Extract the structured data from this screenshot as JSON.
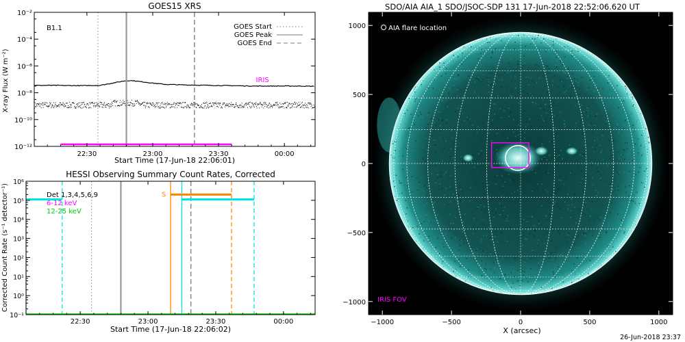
{
  "footer_timestamp": "26-Jun-2018 23:37",
  "chart_data": [
    {
      "id": "goes",
      "type": "line",
      "title": "GOES15 XRS",
      "xlabel": "Start Time (17-Jun-18 22:06:01)",
      "ylabel": "X-ray Flux (W m⁻²)",
      "x_unit": "minutes since 22:06:01",
      "xlim": [
        0,
        128
      ],
      "ylim_log10": [
        -12,
        -2
      ],
      "x_ticks": [
        {
          "m": 24,
          "label": "22:30"
        },
        {
          "m": 54,
          "label": "23:00"
        },
        {
          "m": 84,
          "label": "23:30"
        },
        {
          "m": 114,
          "label": "00:00"
        }
      ],
      "y_ticks": [
        {
          "e": -2,
          "label": "10⁻²"
        },
        {
          "e": -4,
          "label": "10⁻⁴"
        },
        {
          "e": -6,
          "label": "10⁻⁶"
        },
        {
          "e": -8,
          "label": "10⁻⁸"
        },
        {
          "e": -10,
          "label": "10⁻¹⁰"
        },
        {
          "e": -12,
          "label": "10⁻¹²"
        }
      ],
      "class_label": "B1.1",
      "legend": [
        {
          "name": "GOES Start",
          "dash": "dot"
        },
        {
          "name": "GOES Peak",
          "dash": "solid"
        },
        {
          "name": "GOES End",
          "dash": "dash"
        }
      ],
      "markers": {
        "start": 29,
        "peak": 42,
        "end": 73
      },
      "long_channel": {
        "x": [
          0,
          10,
          20,
          30,
          35,
          40,
          42,
          45,
          50,
          55,
          60,
          70,
          80,
          90,
          100,
          110,
          120,
          128
        ],
        "log10": [
          -7.45,
          -7.45,
          -7.47,
          -7.45,
          -7.3,
          -7.15,
          -7.1,
          -7.1,
          -7.2,
          -7.3,
          -7.38,
          -7.42,
          -7.45,
          -7.47,
          -7.5,
          -7.5,
          -7.5,
          -7.52
        ]
      },
      "short_channel": {
        "log10_mean": -8.9,
        "scatter": 0.45
      },
      "iris_bar": {
        "x": [
          12,
          90
        ],
        "log10": -11.85,
        "label": "IRIS",
        "label_x": 101,
        "label_log10": -7.2
      }
    },
    {
      "id": "hessi",
      "type": "line",
      "title": "HESSI Observing Summary Count Rates, Corrected",
      "xlabel": "Start Time (17-Jun-18 22:06:02)",
      "ylabel": "Corrected Count Rate (s⁻¹ detector⁻¹)",
      "xlim": [
        0,
        128
      ],
      "ylim_log10": [
        -1,
        6
      ],
      "x_ticks": [
        {
          "m": 24,
          "label": "22:30"
        },
        {
          "m": 54,
          "label": "23:00"
        },
        {
          "m": 84,
          "label": "23:30"
        },
        {
          "m": 114,
          "label": "00:00"
        }
      ],
      "y_ticks": [
        {
          "e": 6,
          "label": "10⁶"
        },
        {
          "e": 5,
          "label": "10⁵"
        },
        {
          "e": 4,
          "label": "10⁴"
        },
        {
          "e": 3,
          "label": "10³"
        },
        {
          "e": 2,
          "label": "10²"
        },
        {
          "e": 1,
          "label": "10¹"
        },
        {
          "e": 0,
          "label": "10⁰"
        },
        {
          "e": -1,
          "label": "10⁻¹"
        }
      ],
      "legend": [
        {
          "name": "Det 1,3,4,5,6,9",
          "color": "#000000"
        },
        {
          "name": "6-12 keV",
          "color": "#ff00ff"
        },
        {
          "name": "12-25 keV",
          "color": "#00cc00"
        }
      ],
      "goes_markers": {
        "start": 29,
        "peak": 42,
        "end": 73
      },
      "cyan_segments": [
        {
          "x": [
            0,
            16
          ],
          "log10": 5.05
        },
        {
          "x": [
            69,
            101
          ],
          "log10": 5.05
        }
      ],
      "cyan_solid_x": [
        0,
        69
      ],
      "cyan_dashed_x": [
        16,
        101
      ],
      "orange_segment": {
        "x": [
          64,
          91
        ],
        "log10": 5.3,
        "label": "S"
      },
      "orange_solid_x": 64,
      "orange_dashed_x": 91
    },
    {
      "id": "aia",
      "type": "image",
      "title": "SDO/AIA AIA_1 SDO/JSOC-SDP 131 17-Jun-2018 22:52:06.620 UT",
      "xlabel": "X (arcsec)",
      "xlim": [
        -1100,
        1100
      ],
      "ylim": [
        -1100,
        1100
      ],
      "x_ticks": [
        -1000,
        -500,
        0,
        500,
        1000
      ],
      "y_ticks": [
        -1000,
        -500,
        0,
        500,
        1000
      ],
      "solar_radius": 950,
      "flare_location": {
        "x": -20,
        "y": 40,
        "radius": 90
      },
      "iris_fov": {
        "x": [
          -210,
          60
        ],
        "y": [
          -30,
          150
        ]
      },
      "labels": {
        "flare": "AIA flare location",
        "iris": "IRIS FOV"
      }
    }
  ]
}
